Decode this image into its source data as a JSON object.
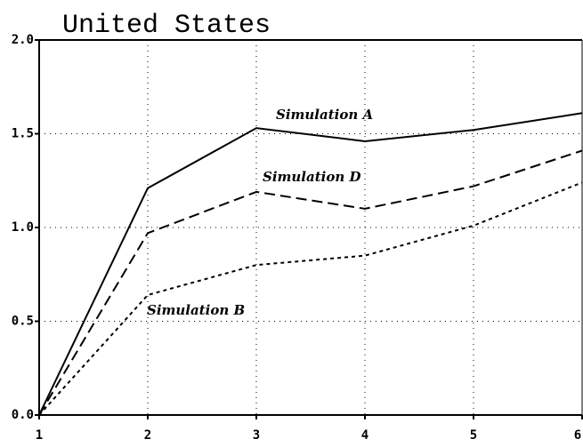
{
  "chart_data": {
    "type": "line",
    "title": "United States",
    "x": [
      1,
      2,
      3,
      4,
      5,
      6
    ],
    "xlim": [
      1,
      6
    ],
    "xticks": [
      1,
      2,
      3,
      4,
      5,
      6
    ],
    "ylim": [
      0,
      2
    ],
    "yticks": [
      {
        "value": 0,
        "label": "0.0"
      },
      {
        "value": 0.5,
        "label": "0.5"
      },
      {
        "value": 1,
        "label": "1.0"
      },
      {
        "value": 1.5,
        "label": "1.5"
      },
      {
        "value": 2,
        "label": "2.0"
      }
    ],
    "grid": true,
    "series": [
      {
        "name": "Simulation A",
        "color": "#000000",
        "style": "solid",
        "values": [
          0,
          1.21,
          1.53,
          1.46,
          1.52,
          1.61
        ]
      },
      {
        "name": "Simulation D",
        "color": "#000000",
        "style": "dashed",
        "values": [
          0,
          0.97,
          1.19,
          1.1,
          1.22,
          1.41
        ]
      },
      {
        "name": "Simulation B",
        "color": "#000000",
        "style": "dotted",
        "values": [
          0,
          0.64,
          0.8,
          0.85,
          1.01,
          1.24
        ]
      }
    ]
  }
}
